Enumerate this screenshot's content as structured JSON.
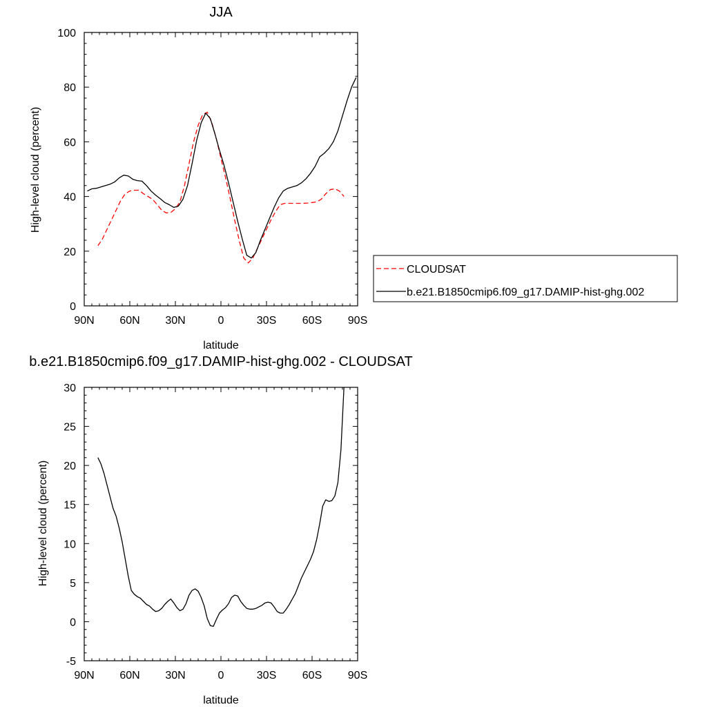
{
  "chart_data": [
    {
      "type": "line",
      "title": "JJA",
      "xlabel": "latitude",
      "ylabel": "High-level cloud (percent)",
      "xlim": [
        90,
        -90
      ],
      "ylim": [
        0,
        100
      ],
      "x_ticks": [
        90,
        60,
        30,
        0,
        -30,
        -60,
        -90
      ],
      "x_tick_labels": [
        "90N",
        "60N",
        "30N",
        "0",
        "30S",
        "60S",
        "90S"
      ],
      "y_ticks": [
        0,
        20,
        40,
        60,
        80,
        100
      ],
      "y_tick_labels": [
        "0",
        "20",
        "40",
        "60",
        "80",
        "100"
      ],
      "grid": false,
      "legend_position": "right",
      "series": [
        {
          "name": "CLOUDSAT",
          "style": "dashed",
          "color": "#ff0000",
          "x": [
            81,
            78,
            75,
            72,
            69,
            66,
            63,
            60,
            57,
            54,
            51,
            48,
            45,
            42,
            39,
            36,
            33,
            30,
            27,
            24,
            21,
            18,
            15,
            12,
            9,
            6,
            3,
            0,
            -3,
            -6,
            -9,
            -12,
            -15,
            -18,
            -21,
            -24,
            -27,
            -30,
            -33,
            -36,
            -39,
            -42,
            -45,
            -48,
            -51,
            -54,
            -57,
            -60,
            -63,
            -66,
            -69,
            -72,
            -75,
            -78,
            -81
          ],
          "y": [
            22,
            24.5,
            28,
            31.5,
            35,
            38.5,
            41,
            42,
            42.3,
            42.3,
            41,
            40,
            39,
            37,
            35,
            34,
            34.2,
            35.5,
            38,
            44,
            52,
            60,
            66,
            70,
            70.8,
            67,
            61,
            54,
            47,
            39.5,
            31.5,
            24,
            17.5,
            15.7,
            17.5,
            21,
            24.5,
            28,
            31.5,
            34.5,
            37,
            37.5,
            37.5,
            37.5,
            37.5,
            37.5,
            37.6,
            37.8,
            38,
            39,
            41,
            42.5,
            42.8,
            42,
            40
          ]
        },
        {
          "name": "b.e21.B1850cmip6.f09_g17.DAMIP-hist-ghg.002",
          "style": "solid",
          "color": "#000000",
          "x": [
            88,
            85,
            82,
            79,
            76,
            73,
            70,
            67,
            64,
            61,
            58,
            55,
            52,
            49,
            46,
            43,
            40,
            37,
            34,
            31,
            28,
            25,
            22,
            19,
            16,
            13,
            10,
            7,
            4,
            1,
            -2,
            -5,
            -8,
            -11,
            -14,
            -17,
            -20,
            -23,
            -26,
            -29,
            -32,
            -35,
            -38,
            -41,
            -44,
            -47,
            -50,
            -53,
            -56,
            -59,
            -62,
            -65,
            -68,
            -71,
            -74,
            -77,
            -80,
            -83,
            -86,
            -89
          ],
          "y": [
            42,
            42.8,
            43,
            43.5,
            44,
            44.5,
            45.3,
            46.8,
            47.8,
            47.5,
            46.3,
            45.8,
            45.6,
            44,
            42,
            40.5,
            39.2,
            37.8,
            37,
            36,
            36.5,
            39,
            44,
            52,
            60.5,
            67,
            70.5,
            68.5,
            63,
            57,
            51.5,
            45,
            38,
            31,
            24.5,
            18.5,
            17.5,
            19.5,
            24,
            28,
            32,
            36,
            39.5,
            42,
            43,
            43.5,
            44,
            45,
            46.5,
            48.5,
            51,
            54.5,
            55.8,
            57.5,
            60,
            64,
            69.5,
            75,
            80,
            83.5
          ]
        }
      ]
    },
    {
      "type": "line",
      "title": "b.e21.B1850cmip6.f09_g17.DAMIP-hist-ghg.002 - CLOUDSAT",
      "xlabel": "latitude",
      "ylabel": "High-level cloud (percent)",
      "xlim": [
        90,
        -90
      ],
      "ylim": [
        -5,
        30
      ],
      "x_ticks": [
        90,
        60,
        30,
        0,
        -30,
        -60,
        -90
      ],
      "x_tick_labels": [
        "90N",
        "60N",
        "30N",
        "0",
        "30S",
        "60S",
        "90S"
      ],
      "y_ticks": [
        -5,
        0,
        5,
        10,
        15,
        20,
        25,
        30
      ],
      "y_tick_labels": [
        "-5",
        "0",
        "5",
        "10",
        "15",
        "20",
        "25",
        "30"
      ],
      "grid": false,
      "series": [
        {
          "style": "solid",
          "color": "#000000",
          "x": [
            81,
            79,
            77,
            75,
            73,
            71,
            69,
            67,
            65,
            63,
            61,
            59,
            57,
            55,
            53,
            51,
            49,
            47,
            45,
            43,
            41,
            39,
            37,
            35,
            33,
            31,
            29,
            27,
            25,
            23,
            21,
            19,
            17,
            15,
            13,
            11,
            9,
            7,
            5,
            3,
            1,
            -1,
            -3,
            -5,
            -7,
            -9,
            -11,
            -13,
            -15,
            -17,
            -19,
            -21,
            -23,
            -25,
            -27,
            -29,
            -31,
            -33,
            -35,
            -37,
            -39,
            -41,
            -43,
            -45,
            -47,
            -49,
            -51,
            -53,
            -55,
            -57,
            -59,
            -61,
            -63,
            -65,
            -67,
            -69,
            -71,
            -73,
            -75,
            -77,
            -79,
            -81
          ],
          "y": [
            21,
            20.2,
            19,
            17.5,
            16,
            14.5,
            13.5,
            12,
            10.2,
            8,
            5.8,
            4,
            3.5,
            3.2,
            3,
            2.6,
            2.2,
            2,
            1.6,
            1.3,
            1.4,
            1.7,
            2.2,
            2.6,
            2.9,
            2.4,
            1.8,
            1.4,
            1.6,
            2.3,
            3.4,
            4,
            4.2,
            3.9,
            3.1,
            2,
            0.4,
            -0.5,
            -0.6,
            0.3,
            1.1,
            1.5,
            1.8,
            2.3,
            3.1,
            3.4,
            3.3,
            2.6,
            2.1,
            1.7,
            1.6,
            1.6,
            1.7,
            1.9,
            2.1,
            2.4,
            2.5,
            2.4,
            1.9,
            1.3,
            1.1,
            1.1,
            1.6,
            2.2,
            2.9,
            3.6,
            4.6,
            5.6,
            6.4,
            7.2,
            8,
            9,
            10.5,
            12.5,
            14.8,
            15.6,
            15.4,
            15.5,
            16.1,
            17.8,
            22,
            30
          ]
        }
      ]
    }
  ]
}
